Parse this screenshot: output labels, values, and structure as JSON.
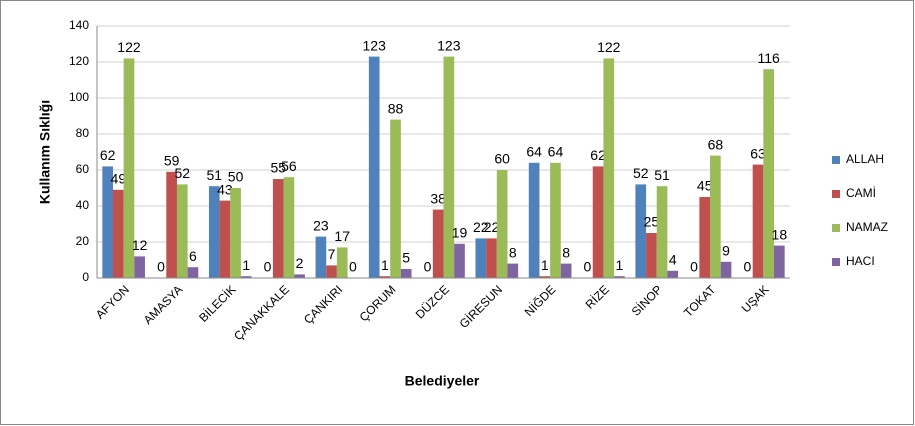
{
  "chart_data": {
    "type": "bar",
    "x_label": "Belediyeler",
    "y_label": "Kullanım Sıklığı",
    "categories": [
      "AFYON",
      "AMASYA",
      "BİLECİK",
      "ÇANAKKALE",
      "ÇANKIRI",
      "ÇORUM",
      "DÜZCE",
      "GİRESUN",
      "NİĞDE",
      "RİZE",
      "SİNOP",
      "TOKAT",
      "UŞAK"
    ],
    "series": [
      {
        "name": "ALLAH",
        "color": "#4f81bd",
        "values": [
          62,
          0,
          51,
          0,
          23,
          123,
          0,
          22,
          64,
          0,
          52,
          0,
          0
        ]
      },
      {
        "name": "CAMİ",
        "color": "#c0504d",
        "values": [
          49,
          59,
          43,
          55,
          7,
          1,
          38,
          22,
          1,
          62,
          25,
          45,
          63
        ]
      },
      {
        "name": "NAMAZ",
        "color": "#9bbb59",
        "values": [
          122,
          52,
          50,
          56,
          17,
          88,
          123,
          60,
          64,
          122,
          51,
          68,
          116
        ]
      },
      {
        "name": "HACI",
        "color": "#8064a2",
        "values": [
          12,
          6,
          1,
          2,
          0,
          5,
          19,
          8,
          8,
          1,
          4,
          9,
          18
        ]
      }
    ],
    "ylim": [
      0,
      140
    ],
    "yticks": [
      0,
      20,
      40,
      60,
      80,
      100,
      120,
      140
    ],
    "grid": true,
    "legend": "right"
  }
}
